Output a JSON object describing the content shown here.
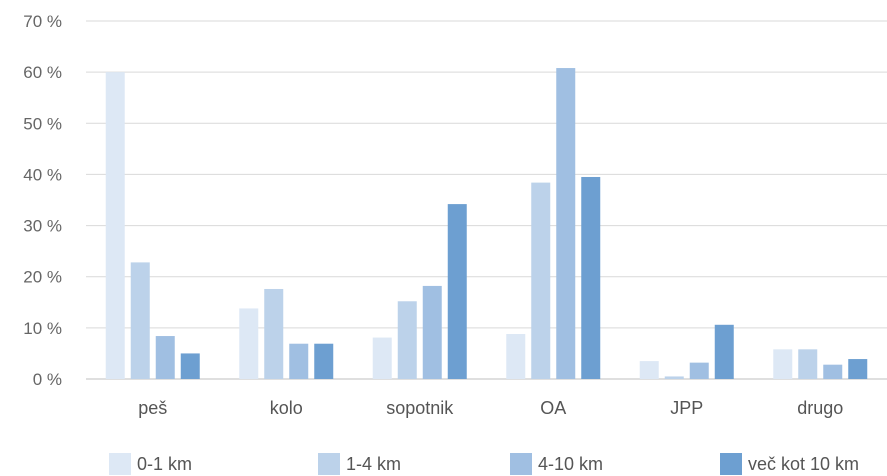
{
  "chart_data": {
    "type": "bar",
    "title": "",
    "xlabel": "",
    "ylabel": "",
    "categories": [
      "peš",
      "kolo",
      "sopotnik",
      "OA",
      "JPP",
      "drugo"
    ],
    "series": [
      {
        "name": "0-1 km",
        "color": "#dde8f5",
        "values": [
          60,
          13.8,
          8.1,
          8.8,
          3.5,
          5.8
        ]
      },
      {
        "name": "1-4 km",
        "color": "#bcd2ea",
        "values": [
          22.8,
          17.6,
          15.2,
          38.4,
          0.5,
          5.8
        ]
      },
      {
        "name": "4-10 km",
        "color": "#a0bfe2",
        "values": [
          8.4,
          6.9,
          18.2,
          60.8,
          3.2,
          2.8
        ]
      },
      {
        "name": "več kot 10 km",
        "color": "#6d9fd1",
        "values": [
          5.0,
          6.9,
          34.2,
          39.5,
          10.6,
          3.9
        ]
      }
    ],
    "yticks": [
      "0 %",
      "10 %",
      "20 %",
      "30 %",
      "40 %",
      "50 %",
      "60 %",
      "70 %"
    ],
    "ylim": [
      0,
      70
    ],
    "grid": true,
    "legend_position": "bottom"
  }
}
